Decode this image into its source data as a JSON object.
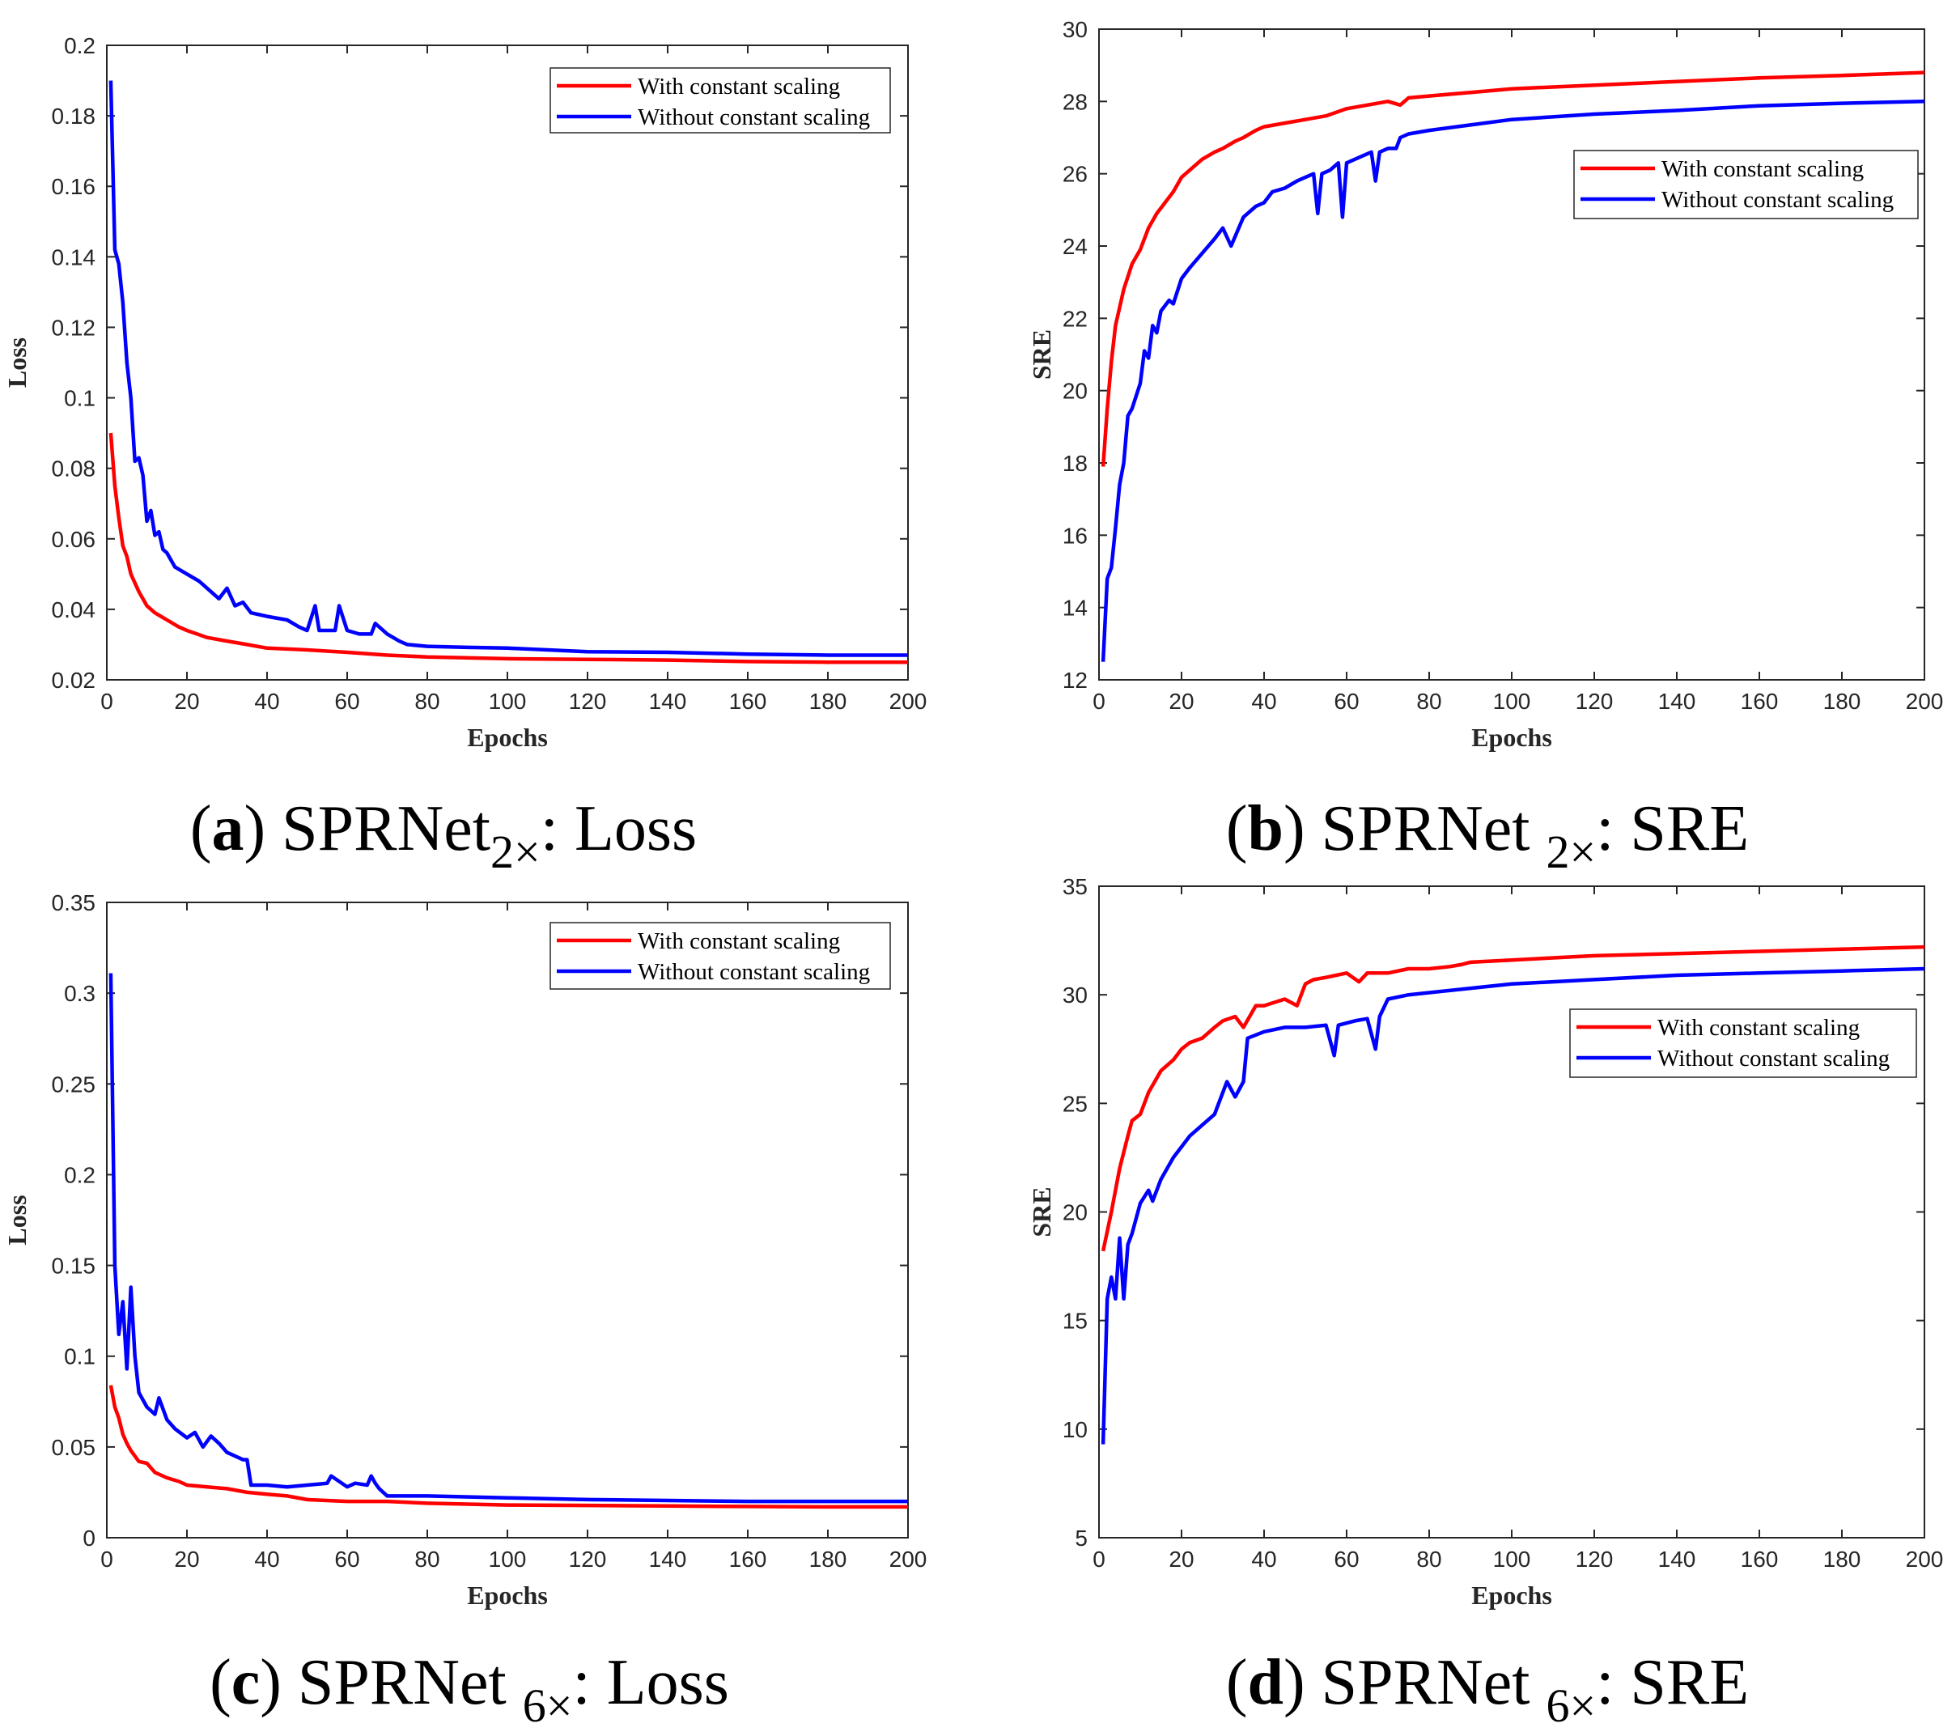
{
  "colors": {
    "with": "#ff0000",
    "without": "#0000ff",
    "axis": "#262626"
  },
  "chart_data": [
    {
      "type": "line",
      "caption": {
        "letter": "a",
        "name": "SPRNet",
        "sub": "2×",
        "suffix": ": Loss"
      },
      "xlabel": "Epochs",
      "ylabel": "Loss",
      "xlim": [
        0,
        200
      ],
      "ylim": [
        0.02,
        0.2
      ],
      "xticks": [
        "0",
        "20",
        "40",
        "60",
        "80",
        "100",
        "120",
        "140",
        "160",
        "180",
        "200"
      ],
      "yticks": [
        "0.02",
        "0.04",
        "0.06",
        "0.08",
        "0.1",
        "0.12",
        "0.14",
        "0.16",
        "0.18",
        "0.2"
      ],
      "legend": {
        "position": "top-right",
        "entries": [
          "With constant scaling",
          "Without constant scaling"
        ]
      },
      "series": [
        {
          "name": "With constant scaling",
          "color": "#ff0000",
          "x": [
            1,
            2,
            3,
            4,
            5,
            6,
            8,
            10,
            12,
            15,
            18,
            20,
            25,
            30,
            35,
            40,
            50,
            60,
            70,
            80,
            100,
            120,
            140,
            160,
            180,
            200
          ],
          "values": [
            0.09,
            0.075,
            0.066,
            0.058,
            0.055,
            0.05,
            0.045,
            0.041,
            0.039,
            0.037,
            0.035,
            0.034,
            0.032,
            0.031,
            0.03,
            0.029,
            0.0285,
            0.0278,
            0.027,
            0.0265,
            0.026,
            0.0258,
            0.0256,
            0.0252,
            0.025,
            0.025
          ]
        },
        {
          "name": "Without constant scaling",
          "color": "#0000ff",
          "x": [
            1,
            2,
            3,
            4,
            5,
            6,
            7,
            8,
            9,
            10,
            11,
            12,
            13,
            14,
            15,
            17,
            20,
            23,
            26,
            28,
            30,
            32,
            34,
            36,
            40,
            45,
            48,
            50,
            52,
            53,
            55,
            57,
            58,
            60,
            63,
            66,
            67,
            70,
            73,
            75,
            80,
            90,
            100,
            110,
            120,
            140,
            160,
            180,
            200
          ],
          "values": [
            0.19,
            0.142,
            0.138,
            0.127,
            0.11,
            0.1,
            0.082,
            0.083,
            0.078,
            0.065,
            0.068,
            0.061,
            0.062,
            0.057,
            0.056,
            0.052,
            0.05,
            0.048,
            0.045,
            0.043,
            0.046,
            0.041,
            0.042,
            0.039,
            0.038,
            0.037,
            0.035,
            0.034,
            0.041,
            0.034,
            0.034,
            0.034,
            0.041,
            0.034,
            0.033,
            0.033,
            0.036,
            0.033,
            0.031,
            0.03,
            0.0295,
            0.0292,
            0.029,
            0.0285,
            0.028,
            0.0278,
            0.0273,
            0.027,
            0.027
          ]
        }
      ]
    },
    {
      "type": "line",
      "caption": {
        "letter": "b",
        "name": "SPRNet ",
        "sub": "2×",
        "suffix": ": SRE"
      },
      "xlabel": "Epochs",
      "ylabel": "SRE",
      "xlim": [
        0,
        200
      ],
      "ylim": [
        12,
        30
      ],
      "xticks": [
        "0",
        "20",
        "40",
        "60",
        "80",
        "100",
        "120",
        "140",
        "160",
        "180",
        "200"
      ],
      "yticks": [
        "12",
        "14",
        "16",
        "18",
        "20",
        "22",
        "24",
        "26",
        "28",
        "30"
      ],
      "legend": {
        "position": "top-right",
        "entries": [
          "With constant scaling",
          "Without constant scaling"
        ]
      },
      "series": [
        {
          "name": "With constant scaling",
          "color": "#ff0000",
          "x": [
            1,
            2,
            3,
            4,
            5,
            6,
            8,
            10,
            12,
            14,
            16,
            18,
            20,
            23,
            25,
            28,
            30,
            33,
            35,
            38,
            40,
            45,
            50,
            55,
            60,
            65,
            70,
            73,
            75,
            80,
            90,
            100,
            120,
            140,
            160,
            180,
            200
          ],
          "values": [
            17.9,
            19.5,
            20.8,
            21.8,
            22.3,
            22.8,
            23.5,
            23.9,
            24.5,
            24.9,
            25.2,
            25.5,
            25.9,
            26.2,
            26.4,
            26.6,
            26.7,
            26.9,
            27.0,
            27.2,
            27.3,
            27.4,
            27.5,
            27.6,
            27.8,
            27.9,
            28.0,
            27.9,
            28.1,
            28.15,
            28.25,
            28.35,
            28.45,
            28.55,
            28.65,
            28.72,
            28.8
          ]
        },
        {
          "name": "Without constant scaling",
          "color": "#0000ff",
          "x": [
            1,
            2,
            3,
            4,
            5,
            6,
            7,
            8,
            10,
            11,
            12,
            13,
            14,
            15,
            17,
            18,
            20,
            22,
            25,
            28,
            30,
            32,
            35,
            38,
            40,
            42,
            45,
            48,
            50,
            52,
            53,
            54,
            56,
            58,
            59,
            60,
            62,
            64,
            66,
            67,
            68,
            70,
            72,
            73,
            75,
            80,
            90,
            100,
            120,
            140,
            160,
            180,
            200
          ],
          "values": [
            12.5,
            14.8,
            15.1,
            16.2,
            17.4,
            18.0,
            19.3,
            19.5,
            20.2,
            21.1,
            20.9,
            21.8,
            21.6,
            22.2,
            22.5,
            22.4,
            23.1,
            23.4,
            23.8,
            24.2,
            24.5,
            24.0,
            24.8,
            25.1,
            25.2,
            25.5,
            25.6,
            25.8,
            25.9,
            26.0,
            24.9,
            26.0,
            26.1,
            26.3,
            24.8,
            26.3,
            26.4,
            26.5,
            26.6,
            25.8,
            26.6,
            26.7,
            26.7,
            27.0,
            27.1,
            27.2,
            27.35,
            27.5,
            27.65,
            27.75,
            27.88,
            27.95,
            28.0
          ]
        }
      ]
    },
    {
      "type": "line",
      "caption": {
        "letter": "c",
        "name": "SPRNet ",
        "sub": "6×",
        "suffix": ": Loss"
      },
      "xlabel": "Epochs",
      "ylabel": "Loss",
      "xlim": [
        0,
        200
      ],
      "ylim": [
        0,
        0.35
      ],
      "xticks": [
        "0",
        "20",
        "40",
        "60",
        "80",
        "100",
        "120",
        "140",
        "160",
        "180",
        "200"
      ],
      "yticks": [
        "0",
        "0.05",
        "0.1",
        "0.15",
        "0.2",
        "0.25",
        "0.3",
        "0.35"
      ],
      "legend": {
        "position": "top-right",
        "entries": [
          "With constant scaling",
          "Without constant scaling"
        ]
      },
      "series": [
        {
          "name": "With constant scaling",
          "color": "#ff0000",
          "x": [
            1,
            2,
            3,
            4,
            5,
            6,
            8,
            10,
            12,
            15,
            18,
            20,
            25,
            30,
            35,
            40,
            45,
            50,
            60,
            70,
            80,
            100,
            120,
            140,
            160,
            180,
            200
          ],
          "values": [
            0.084,
            0.072,
            0.066,
            0.057,
            0.052,
            0.048,
            0.042,
            0.041,
            0.036,
            0.033,
            0.031,
            0.029,
            0.028,
            0.027,
            0.025,
            0.024,
            0.023,
            0.021,
            0.02,
            0.02,
            0.019,
            0.018,
            0.0178,
            0.0175,
            0.0172,
            0.017,
            0.017
          ]
        },
        {
          "name": "Without constant scaling",
          "color": "#0000ff",
          "x": [
            1,
            2,
            3,
            4,
            5,
            6,
            7,
            8,
            10,
            12,
            13,
            15,
            17,
            20,
            22,
            24,
            26,
            28,
            30,
            32,
            34,
            35,
            36,
            40,
            45,
            50,
            55,
            56,
            60,
            62,
            65,
            66,
            67,
            68,
            70,
            80,
            100,
            120,
            140,
            160,
            180,
            200
          ],
          "values": [
            0.311,
            0.15,
            0.112,
            0.13,
            0.093,
            0.138,
            0.1,
            0.08,
            0.072,
            0.068,
            0.077,
            0.065,
            0.06,
            0.055,
            0.058,
            0.05,
            0.056,
            0.052,
            0.047,
            0.045,
            0.043,
            0.043,
            0.029,
            0.029,
            0.028,
            0.029,
            0.03,
            0.034,
            0.028,
            0.03,
            0.029,
            0.034,
            0.03,
            0.027,
            0.023,
            0.023,
            0.022,
            0.021,
            0.0205,
            0.02,
            0.02,
            0.02
          ]
        }
      ]
    },
    {
      "type": "line",
      "caption": {
        "letter": "d",
        "name": "SPRNet ",
        "sub": "6×",
        "suffix": ": SRE"
      },
      "xlabel": "Epochs",
      "ylabel": "SRE",
      "xlim": [
        0,
        200
      ],
      "ylim": [
        5,
        35
      ],
      "xticks": [
        "0",
        "20",
        "40",
        "60",
        "80",
        "100",
        "120",
        "140",
        "160",
        "180",
        "200"
      ],
      "yticks": [
        "5",
        "10",
        "15",
        "20",
        "25",
        "30",
        "35"
      ],
      "legend": {
        "position": "top-right",
        "entries": [
          "With constant scaling",
          "Without constant scaling"
        ]
      },
      "series": [
        {
          "name": "With constant scaling",
          "color": "#ff0000",
          "x": [
            1,
            3,
            5,
            7,
            8,
            10,
            12,
            15,
            18,
            20,
            22,
            25,
            28,
            30,
            33,
            35,
            38,
            40,
            45,
            48,
            50,
            52,
            55,
            60,
            63,
            65,
            70,
            75,
            80,
            85,
            88,
            90,
            100,
            120,
            140,
            160,
            180,
            200
          ],
          "values": [
            18.2,
            20.0,
            22.0,
            23.5,
            24.2,
            24.5,
            25.5,
            26.5,
            27.0,
            27.5,
            27.8,
            28.0,
            28.5,
            28.8,
            29.0,
            28.5,
            29.5,
            29.5,
            29.8,
            29.5,
            30.5,
            30.7,
            30.8,
            31.0,
            30.6,
            31.0,
            31.0,
            31.2,
            31.2,
            31.3,
            31.4,
            31.5,
            31.6,
            31.8,
            31.9,
            32.0,
            32.1,
            32.2
          ]
        },
        {
          "name": "Without constant scaling",
          "color": "#0000ff",
          "x": [
            1,
            2,
            3,
            4,
            5,
            6,
            7,
            8,
            10,
            12,
            13,
            15,
            18,
            20,
            22,
            25,
            28,
            30,
            31,
            33,
            35,
            36,
            40,
            45,
            50,
            55,
            57,
            58,
            60,
            62,
            65,
            67,
            68,
            70,
            75,
            80,
            90,
            100,
            120,
            140,
            160,
            180,
            200
          ],
          "values": [
            9.3,
            16.0,
            17.0,
            16.0,
            18.8,
            16.0,
            18.5,
            19.0,
            20.4,
            21.0,
            20.5,
            21.5,
            22.5,
            23.0,
            23.5,
            24.0,
            24.5,
            25.5,
            26.0,
            25.3,
            26.0,
            28.0,
            28.3,
            28.5,
            28.5,
            28.6,
            27.2,
            28.6,
            28.7,
            28.8,
            28.9,
            27.5,
            29.0,
            29.8,
            30.0,
            30.1,
            30.3,
            30.5,
            30.7,
            30.9,
            31.0,
            31.1,
            31.2
          ]
        }
      ]
    }
  ]
}
